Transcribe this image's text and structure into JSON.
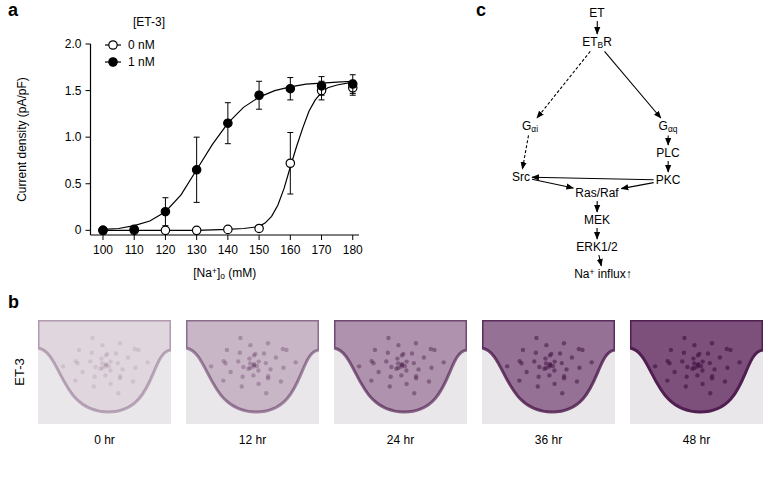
{
  "panel_labels": [
    "a",
    "b",
    "c"
  ],
  "chart_data": {
    "type": "scatter",
    "y_label": "Current density (pA/pF)",
    "x_label": [
      {
        "t": "[Na"
      },
      {
        "t": "+",
        "sup": true
      },
      {
        "t": "]"
      },
      {
        "t": "o",
        "sub": true
      },
      {
        "t": " (mM)"
      }
    ],
    "legend_title": "[ET-3]",
    "legend": "upper left",
    "x": [
      100,
      110,
      120,
      130,
      140,
      150,
      160,
      170,
      180
    ],
    "xlim": [
      96,
      182
    ],
    "xticks": [
      100,
      110,
      120,
      130,
      140,
      150,
      160,
      170,
      180
    ],
    "ylim": [
      -0.05,
      2
    ],
    "yticks": [
      0,
      0.5,
      {
        "value": 1,
        "label": "1.0"
      },
      1.5,
      {
        "value": 2,
        "label": "2.0"
      }
    ],
    "series": [
      {
        "name": "0 nM",
        "marker": "open",
        "color": "#000000",
        "values": [
          0,
          0,
          0,
          0,
          0.01,
          0.02,
          0.72,
          1.5,
          1.53
        ],
        "errors": [
          0,
          0,
          0,
          0,
          0,
          0.02,
          0.33,
          0.1,
          0.08
        ],
        "fit_x": [
          100,
          130,
          140,
          145,
          150,
          152,
          154,
          156,
          158,
          160,
          162,
          164,
          166,
          168,
          170,
          172,
          175,
          180
        ],
        "fit_values": [
          0,
          0,
          0.01,
          0.02,
          0.04,
          0.08,
          0.15,
          0.27,
          0.45,
          0.68,
          0.9,
          1.1,
          1.28,
          1.4,
          1.48,
          1.53,
          1.56,
          1.59
        ]
      },
      {
        "name": "1 nM",
        "marker": "filled",
        "color": "#000000",
        "values": [
          0,
          0.01,
          0.2,
          0.65,
          1.15,
          1.45,
          1.52,
          1.55,
          1.57
        ],
        "errors": [
          0,
          0.01,
          0.15,
          0.35,
          0.22,
          0.15,
          0.12,
          0.1,
          0.1
        ],
        "fit_x": [
          100,
          105,
          110,
          115,
          120,
          125,
          130,
          135,
          140,
          145,
          150,
          155,
          160,
          165,
          170,
          175,
          180
        ],
        "fit_values": [
          0.01,
          0.02,
          0.05,
          0.1,
          0.2,
          0.38,
          0.65,
          0.92,
          1.15,
          1.32,
          1.43,
          1.5,
          1.54,
          1.57,
          1.58,
          1.59,
          1.6
        ]
      }
    ]
  },
  "micrographs": {
    "row_label": "ET-3",
    "times": [
      "0 hr",
      "12 hr",
      "24 hr",
      "36 hr",
      "48 hr"
    ]
  },
  "diagram": {
    "nodes": [
      {
        "parts": [
          {
            "t": "ET"
          }
        ]
      },
      {
        "parts": [
          {
            "t": "ET"
          },
          {
            "t": "B",
            "sub": true
          },
          {
            "t": "R"
          }
        ]
      },
      {
        "parts": [
          {
            "t": "G"
          },
          {
            "t": "αi",
            "sub": true
          }
        ]
      },
      {
        "parts": [
          {
            "t": "G"
          },
          {
            "t": "αq",
            "sub": true
          }
        ]
      },
      {
        "parts": [
          {
            "t": "PLC"
          }
        ]
      },
      {
        "parts": [
          {
            "t": "PKC"
          }
        ]
      },
      {
        "parts": [
          {
            "t": "Src"
          }
        ]
      },
      {
        "parts": [
          {
            "t": "Ras/Raf"
          }
        ]
      },
      {
        "parts": [
          {
            "t": "MEK"
          }
        ]
      },
      {
        "parts": [
          {
            "t": "ERK1/2"
          }
        ]
      },
      {
        "parts": [
          {
            "t": "Na"
          },
          {
            "t": "+",
            "sup": true
          },
          {
            "t": " influx"
          },
          {
            "t": "↑"
          }
        ]
      }
    ],
    "edges": [
      {
        "from": 0,
        "to": 1,
        "line_style": "solid"
      },
      {
        "from": 1,
        "to": 2,
        "line_style": "dashed"
      },
      {
        "from": 1,
        "to": 3,
        "line_style": "solid"
      },
      {
        "from": 3,
        "to": 4,
        "line_style": "solid"
      },
      {
        "from": 4,
        "to": 5,
        "line_style": "solid"
      },
      {
        "from": 2,
        "to": 6,
        "line_style": "dashed"
      },
      {
        "from": 5,
        "to": 6,
        "line_style": "solid"
      },
      {
        "from": 5,
        "to": 7,
        "line_style": "solid"
      },
      {
        "from": 6,
        "to": 7,
        "line_style": "solid"
      },
      {
        "from": 7,
        "to": 8,
        "line_style": "solid"
      },
      {
        "from": 8,
        "to": 9,
        "line_style": "solid"
      },
      {
        "from": 9,
        "to": 10,
        "line_style": "solid"
      }
    ]
  }
}
